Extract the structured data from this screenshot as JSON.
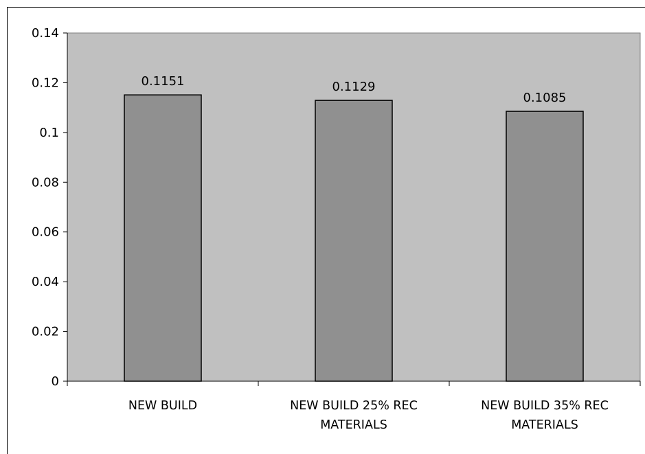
{
  "chart_data": {
    "type": "bar",
    "categories": [
      "NEW BUILD",
      "NEW BUILD 25% REC MATERIALS",
      "NEW BUILD 35% REC MATERIALS"
    ],
    "values": [
      0.1151,
      0.1129,
      0.1085
    ],
    "color": "#909090",
    "plot_background": "#c0c0c0",
    "ylim": [
      0,
      0.14
    ],
    "yticks": [
      0,
      0.02,
      0.04,
      0.06,
      0.08,
      0.1,
      0.12,
      0.14
    ],
    "grid": false
  }
}
